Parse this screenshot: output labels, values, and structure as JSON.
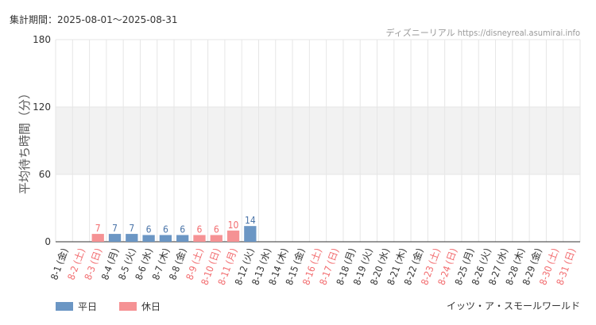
{
  "header": {
    "period_text": "集計期間：2025-08-01～2025-08-31",
    "source_text": "ディズニーリアル https://disneyreal.asumirai.info"
  },
  "footer": {
    "attraction_name": "イッツ・ア・スモールワールド"
  },
  "colors": {
    "weekday": "#6b96c4",
    "holiday": "#f59294",
    "weekday_label": "#4a74a8",
    "holiday_label": "#f26b6e",
    "band": "#f2f2f2",
    "grid": "#e6e6e6",
    "axis": "#333333"
  },
  "chart_data": {
    "type": "bar",
    "ylabel": "平均待ち時間（分）",
    "ylim": [
      0,
      180
    ],
    "yticks": [
      0,
      60,
      120,
      180
    ],
    "shaded_band": [
      60,
      120
    ],
    "legend": [
      {
        "name": "平日",
        "kind": "weekday"
      },
      {
        "name": "休日",
        "kind": "holiday"
      }
    ],
    "categories": [
      "8-1 (金)",
      "8-2 (土)",
      "8-3 (日)",
      "8-4 (月)",
      "8-5 (火)",
      "8-6 (水)",
      "8-7 (木)",
      "8-8 (金)",
      "8-9 (土)",
      "8-10 (日)",
      "8-11 (月)",
      "8-12 (火)",
      "8-13 (水)",
      "8-14 (木)",
      "8-15 (金)",
      "8-16 (土)",
      "8-17 (日)",
      "8-18 (月)",
      "8-19 (火)",
      "8-20 (水)",
      "8-21 (木)",
      "8-22 (金)",
      "8-23 (土)",
      "8-24 (日)",
      "8-25 (月)",
      "8-26 (火)",
      "8-27 (水)",
      "8-28 (木)",
      "8-29 (金)",
      "8-30 (土)",
      "8-31 (日)"
    ],
    "day_type": [
      "weekday",
      "holiday",
      "holiday",
      "weekday",
      "weekday",
      "weekday",
      "weekday",
      "weekday",
      "holiday",
      "holiday",
      "holiday",
      "weekday",
      "weekday",
      "weekday",
      "weekday",
      "holiday",
      "holiday",
      "weekday",
      "weekday",
      "weekday",
      "weekday",
      "weekday",
      "holiday",
      "holiday",
      "weekday",
      "weekday",
      "weekday",
      "weekday",
      "weekday",
      "holiday",
      "holiday"
    ],
    "values": [
      null,
      null,
      7,
      7,
      7,
      6,
      6,
      6,
      6,
      6,
      10,
      14,
      null,
      null,
      null,
      null,
      null,
      null,
      null,
      null,
      null,
      null,
      null,
      null,
      null,
      null,
      null,
      null,
      null,
      null,
      null
    ]
  }
}
